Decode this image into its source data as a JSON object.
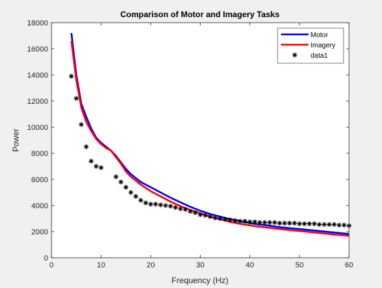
{
  "chart_data": {
    "type": "line",
    "title": "Comparison of Motor and Imagery Tasks",
    "xlabel": "Frequency (Hz)",
    "ylabel": "Power",
    "xlim": [
      0,
      60
    ],
    "ylim": [
      0,
      18000
    ],
    "x_ticks": [
      0,
      10,
      20,
      30,
      40,
      50,
      60
    ],
    "y_ticks": [
      0,
      2000,
      4000,
      6000,
      8000,
      10000,
      12000,
      14000,
      16000,
      18000
    ],
    "x_tick_labels": [
      "0",
      "10",
      "20",
      "30",
      "40",
      "50",
      "60"
    ],
    "y_tick_labels": [
      "0",
      "2000",
      "4000",
      "6000",
      "8000",
      "10000",
      "12000",
      "14000",
      "16000",
      "18000"
    ],
    "grid": false,
    "legend_position": "top-right",
    "series": [
      {
        "name": "Motor",
        "style": "line",
        "color": "#0000ff",
        "x": [
          4,
          5,
          6,
          7,
          8,
          9,
          10,
          11,
          12,
          13,
          14,
          15,
          16,
          17,
          18,
          20,
          22,
          24,
          26,
          28,
          30,
          32,
          34,
          36,
          38,
          40,
          42,
          44,
          46,
          48,
          50,
          52,
          54,
          56,
          58,
          60
        ],
        "y": [
          17200,
          14000,
          11800,
          10800,
          9900,
          9200,
          8800,
          8500,
          8200,
          7800,
          7300,
          6800,
          6400,
          6100,
          5800,
          5400,
          5000,
          4600,
          4250,
          3900,
          3600,
          3350,
          3150,
          2950,
          2800,
          2650,
          2550,
          2450,
          2350,
          2270,
          2200,
          2120,
          2050,
          1970,
          1900,
          1820
        ]
      },
      {
        "name": "Imagery",
        "style": "line",
        "color": "#ff0000",
        "x": [
          4,
          5,
          6,
          7,
          8,
          9,
          10,
          11,
          12,
          13,
          14,
          15,
          16,
          17,
          18,
          20,
          22,
          24,
          26,
          28,
          30,
          32,
          34,
          36,
          38,
          40,
          42,
          44,
          46,
          48,
          50,
          52,
          54,
          56,
          58,
          60
        ],
        "y": [
          16600,
          13600,
          11500,
          10400,
          9700,
          9100,
          8700,
          8400,
          8200,
          7700,
          7200,
          6600,
          6200,
          5900,
          5600,
          5100,
          4700,
          4300,
          3950,
          3650,
          3400,
          3150,
          2950,
          2750,
          2600,
          2480,
          2380,
          2290,
          2200,
          2120,
          2050,
          1980,
          1900,
          1820,
          1750,
          1680
        ]
      },
      {
        "name": "data1",
        "style": "markers",
        "color": "#000000",
        "x": [
          4,
          5,
          6,
          7,
          8,
          9,
          10,
          13,
          14,
          15,
          16,
          17,
          18,
          19,
          20,
          21,
          22,
          23,
          24,
          25,
          26,
          27,
          28,
          29,
          30,
          31,
          32,
          33,
          34,
          35,
          36,
          37,
          38,
          39,
          40,
          41,
          42,
          43,
          44,
          45,
          46,
          47,
          48,
          49,
          50,
          51,
          52,
          53,
          54,
          55,
          56,
          57,
          58,
          59,
          60
        ],
        "y": [
          13900,
          12200,
          10200,
          8500,
          7400,
          7000,
          6900,
          6200,
          5800,
          5400,
          5000,
          4700,
          4400,
          4200,
          4100,
          4100,
          4050,
          4000,
          3950,
          3850,
          3750,
          3700,
          3550,
          3450,
          3300,
          3250,
          3150,
          3050,
          3000,
          2950,
          2900,
          2850,
          2800,
          2800,
          2750,
          2750,
          2700,
          2700,
          2700,
          2700,
          2650,
          2650,
          2650,
          2650,
          2600,
          2600,
          2600,
          2600,
          2550,
          2550,
          2550,
          2550,
          2500,
          2500,
          2450
        ]
      }
    ]
  }
}
